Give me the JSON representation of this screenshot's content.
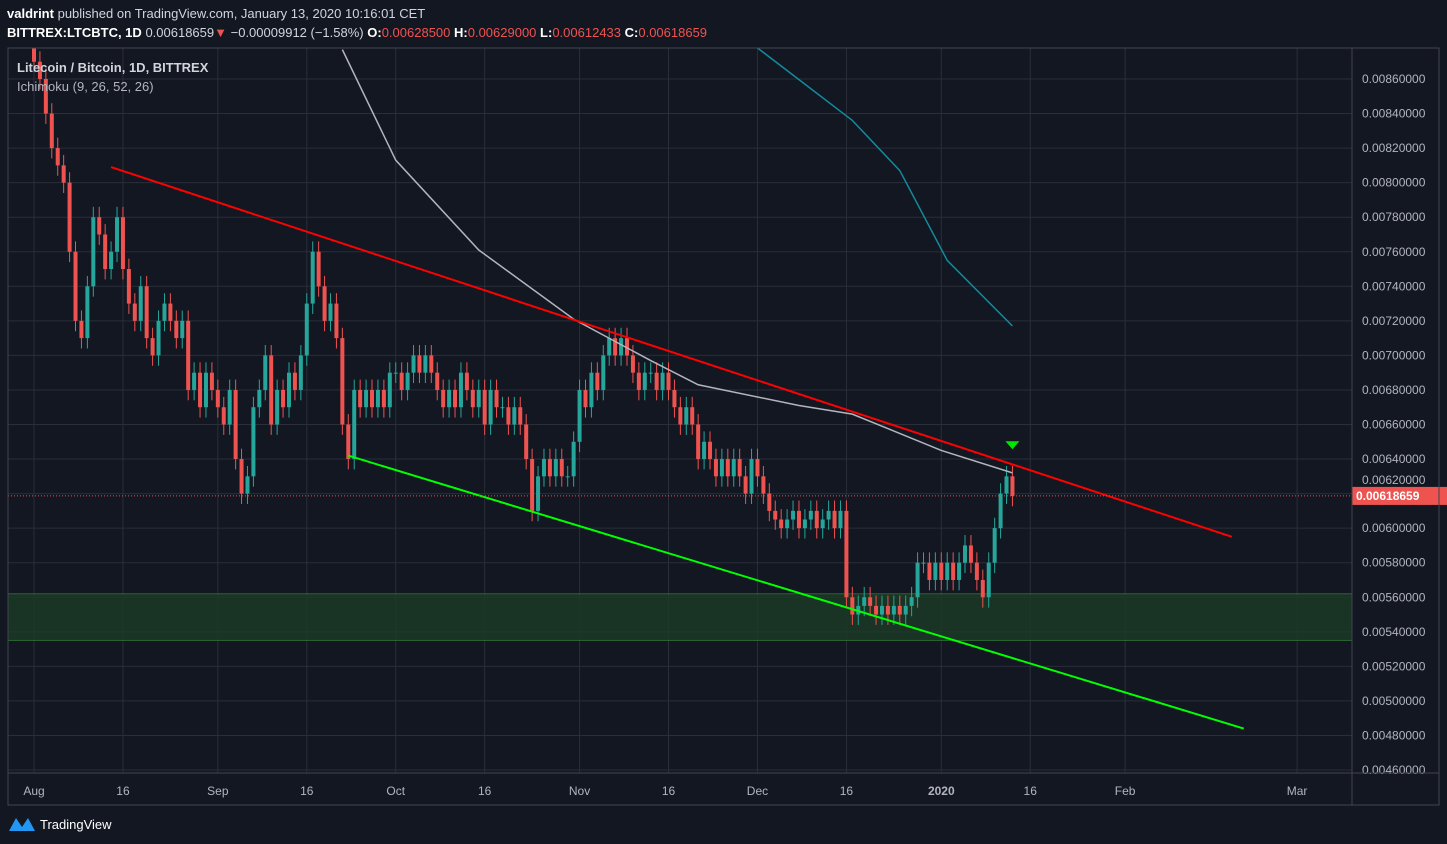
{
  "header": {
    "author": "valdrint",
    "published": "published on TradingView.com, January 13, 2020 10:16:01 CET",
    "symbol": "BITTREX:LTCBTC, 1D",
    "last": "0.00618659",
    "change": "−0.00009912 (−1.58%)",
    "o_label": "O:",
    "o": "0.00628500",
    "h_label": "H:",
    "h": "0.00629000",
    "l_label": "L:",
    "l": "0.00612433",
    "c_label": "C:",
    "c": "0.00618659"
  },
  "legend": {
    "title": "Litecoin / Bitcoin, 1D, BITTREX",
    "indicator": "Ichimoku (9, 26, 52, 26)"
  },
  "brand": "TradingView",
  "colors": {
    "up": "#26a69a",
    "down": "#ef5350",
    "background": "#131722",
    "grid": "#2a2e39",
    "resistance": "#ff0000",
    "support": "#00ff00",
    "zone": "#1b3a25",
    "kijun": "#b2b5be",
    "cloud_line": "#138a9b"
  },
  "chart_data": {
    "type": "candlestick",
    "title": "Litecoin / Bitcoin, 1D, BITTREX",
    "x_axis": {
      "range": [
        "2019-07-28",
        "2020-03-10"
      ],
      "ticks": [
        {
          "date": "2019-08-01",
          "label": "Aug"
        },
        {
          "date": "2019-08-16",
          "label": "16"
        },
        {
          "date": "2019-09-01",
          "label": "Sep"
        },
        {
          "date": "2019-09-16",
          "label": "16"
        },
        {
          "date": "2019-10-01",
          "label": "Oct"
        },
        {
          "date": "2019-10-16",
          "label": "16"
        },
        {
          "date": "2019-11-01",
          "label": "Nov"
        },
        {
          "date": "2019-11-16",
          "label": "16"
        },
        {
          "date": "2019-12-01",
          "label": "Dec"
        },
        {
          "date": "2019-12-16",
          "label": "16"
        },
        {
          "date": "2020-01-01",
          "label": "2020"
        },
        {
          "date": "2020-01-16",
          "label": "16"
        },
        {
          "date": "2020-02-01",
          "label": "Feb"
        },
        {
          "date": "2020-03-01",
          "label": "Mar"
        }
      ]
    },
    "y_axis": {
      "range": [
        0.00459,
        0.00871
      ],
      "ticks": [
        "0.00860000",
        "0.00840000",
        "0.00820000",
        "0.00800000",
        "0.00780000",
        "0.00760000",
        "0.00740000",
        "0.00720000",
        "0.00700000",
        "0.00680000",
        "0.00660000",
        "0.00640000",
        "0.00620000",
        "0.00600000",
        "0.00580000",
        "0.00560000",
        "0.00540000",
        "0.00520000",
        "0.00500000",
        "0.00480000",
        "0.00460000"
      ],
      "grid": true,
      "position": "right"
    },
    "candles_start": "2019-08-01",
    "closes": [
      0.0087,
      0.0086,
      0.0084,
      0.0082,
      0.0081,
      0.008,
      0.0076,
      0.0072,
      0.0071,
      0.0074,
      0.0078,
      0.0077,
      0.0075,
      0.0076,
      0.0078,
      0.0075,
      0.0073,
      0.0072,
      0.0074,
      0.0071,
      0.007,
      0.0072,
      0.0073,
      0.0072,
      0.0071,
      0.0072,
      0.0068,
      0.0069,
      0.0067,
      0.0069,
      0.0068,
      0.0067,
      0.0066,
      0.0068,
      0.0064,
      0.0062,
      0.0063,
      0.0067,
      0.0068,
      0.007,
      0.0066,
      0.0068,
      0.0067,
      0.0069,
      0.0068,
      0.007,
      0.0073,
      0.0076,
      0.0074,
      0.0072,
      0.0073,
      0.0071,
      0.0066,
      0.0064,
      0.0068,
      0.0067,
      0.0068,
      0.0067,
      0.0068,
      0.0067,
      0.0069,
      0.0069,
      0.0068,
      0.0069,
      0.007,
      0.0069,
      0.007,
      0.0069,
      0.0068,
      0.0067,
      0.0068,
      0.0067,
      0.0069,
      0.0068,
      0.0067,
      0.0068,
      0.0066,
      0.0068,
      0.0067,
      0.0067,
      0.0066,
      0.0067,
      0.0066,
      0.0064,
      0.0061,
      0.0063,
      0.0064,
      0.0063,
      0.0064,
      0.0063,
      0.0063,
      0.0065,
      0.0068,
      0.0067,
      0.0069,
      0.0068,
      0.007,
      0.0071,
      0.007,
      0.0071,
      0.007,
      0.0069,
      0.0068,
      0.0069,
      0.0069,
      0.0068,
      0.0069,
      0.0068,
      0.0067,
      0.0066,
      0.0067,
      0.0066,
      0.0064,
      0.0065,
      0.0064,
      0.0063,
      0.0064,
      0.0063,
      0.0064,
      0.0063,
      0.0062,
      0.0064,
      0.0063,
      0.0062,
      0.0061,
      0.00605,
      0.006,
      0.00605,
      0.0061,
      0.006,
      0.00605,
      0.0061,
      0.006,
      0.00605,
      0.0061,
      0.006,
      0.0061,
      0.0056,
      0.0055,
      0.00555,
      0.0056,
      0.00555,
      0.0055,
      0.00555,
      0.0055,
      0.00555,
      0.0055,
      0.00555,
      0.0056,
      0.0058,
      0.0058,
      0.0057,
      0.0058,
      0.0057,
      0.0058,
      0.0057,
      0.0058,
      0.0059,
      0.0058,
      0.0057,
      0.0056,
      0.0058,
      0.006,
      0.0062,
      0.0063,
      0.00618659
    ],
    "kijun_line": [
      [
        "2019-09-22",
        0.00877
      ],
      [
        "2019-10-01",
        0.00813
      ],
      [
        "2019-10-15",
        0.00761
      ],
      [
        "2019-10-31",
        0.00721
      ],
      [
        "2019-11-13",
        0.00697
      ],
      [
        "2019-11-21",
        0.00683
      ],
      [
        "2019-12-08",
        0.00671
      ],
      [
        "2019-12-17",
        0.00666
      ],
      [
        "2020-01-01",
        0.00645
      ],
      [
        "2020-01-13",
        0.00632
      ]
    ],
    "cloud_line": [
      [
        "2019-12-01",
        0.00878
      ],
      [
        "2019-12-17",
        0.00836
      ],
      [
        "2019-12-25",
        0.00807
      ],
      [
        "2020-01-02",
        0.00755
      ],
      [
        "2020-01-13",
        0.00717
      ]
    ],
    "resistance_line": [
      [
        "2019-08-14",
        0.00809
      ],
      [
        "2020-02-19",
        0.00595
      ]
    ],
    "support_line": [
      [
        "2019-09-23",
        0.00642
      ],
      [
        "2020-02-21",
        0.00484
      ]
    ],
    "support_zone": [
      0.00535,
      0.00562
    ],
    "current_price": 0.00618659,
    "current_price_label": "0.00618659",
    "marker": {
      "date": "2020-01-13",
      "price": 0.00648,
      "shape": "triangle-down"
    }
  }
}
